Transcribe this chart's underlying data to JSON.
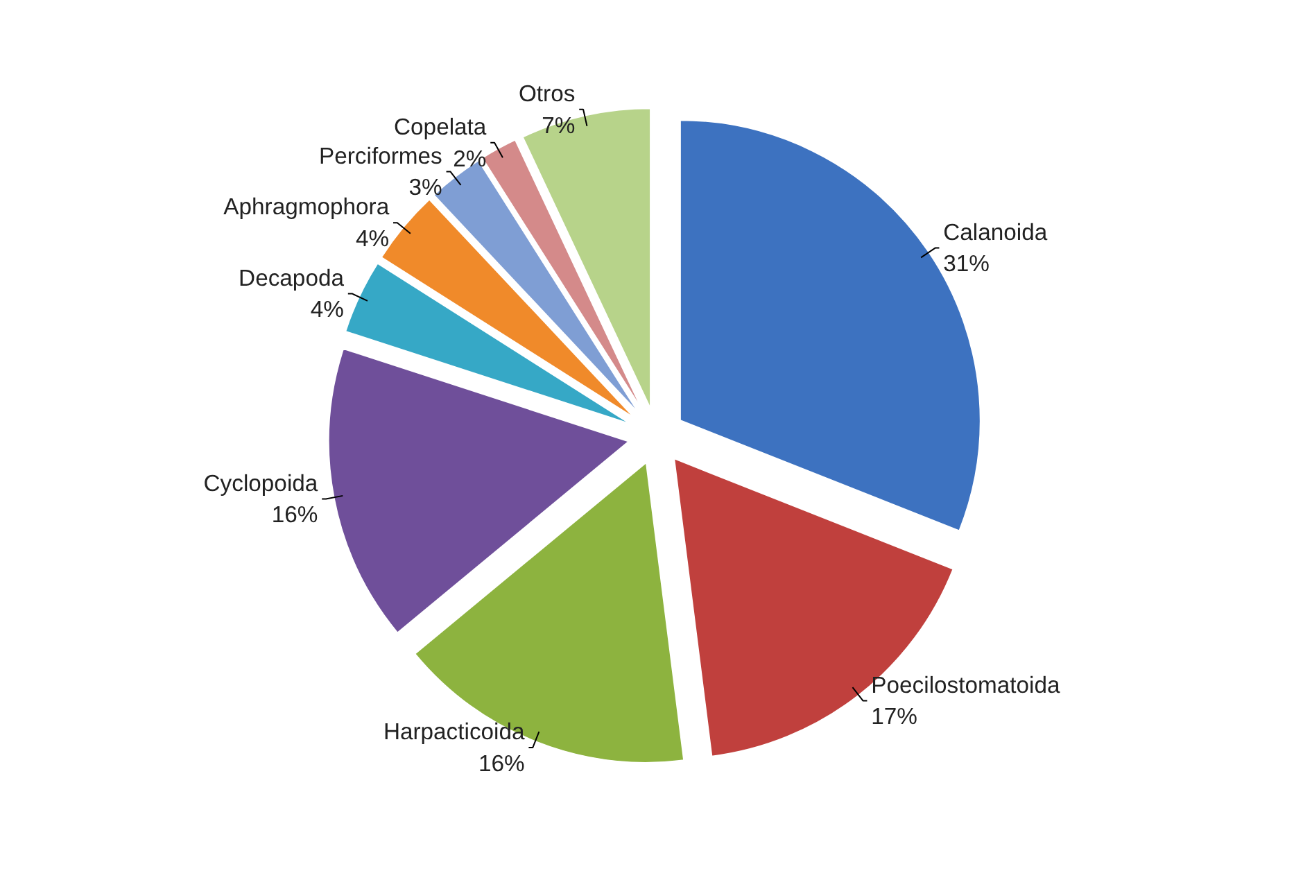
{
  "chart_data": {
    "type": "pie",
    "categories": [
      "Calanoida",
      "Poecilostomatoida",
      "Harpacticoida",
      "Cyclopoida",
      "Decapoda",
      "Aphragmophora",
      "Perciformes",
      "Copelata",
      "Otros"
    ],
    "values": [
      31,
      17,
      16,
      16,
      4,
      4,
      3,
      2,
      7
    ],
    "value_labels": [
      "31%",
      "17%",
      "16%",
      "16%",
      "4%",
      "4%",
      "3%",
      "2%",
      "7%"
    ],
    "colors": [
      "#3d72c0",
      "#c0403d",
      "#8db33f",
      "#6f4f9a",
      "#36a8c6",
      "#f08a2a",
      "#7f9ed4",
      "#d48a8a",
      "#b7d38a"
    ]
  }
}
